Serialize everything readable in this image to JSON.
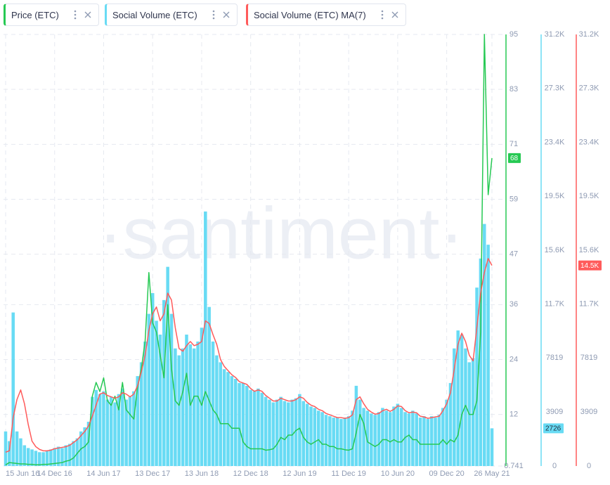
{
  "chart_data": {
    "type": "combo",
    "watermark": "·santiment·",
    "grid": true,
    "categories": [
      "15 Jun 16",
      null,
      null,
      null,
      null,
      null,
      null,
      null,
      null,
      null,
      null,
      null,
      null,
      "14 Dec 16",
      null,
      null,
      null,
      null,
      null,
      null,
      null,
      null,
      null,
      null,
      null,
      null,
      "14 Jun 17",
      null,
      null,
      null,
      null,
      null,
      null,
      null,
      null,
      null,
      null,
      null,
      null,
      "13 Dec 17",
      null,
      null,
      null,
      null,
      null,
      null,
      null,
      null,
      null,
      null,
      null,
      null,
      "13 Jun 18",
      null,
      null,
      null,
      null,
      null,
      null,
      null,
      null,
      null,
      null,
      null,
      null,
      "12 Dec 18",
      null,
      null,
      null,
      null,
      null,
      null,
      null,
      null,
      null,
      null,
      null,
      null,
      "12 Jun 19",
      null,
      null,
      null,
      null,
      null,
      null,
      null,
      null,
      null,
      null,
      null,
      null,
      "11 Dec 19",
      null,
      null,
      null,
      null,
      null,
      null,
      null,
      null,
      null,
      null,
      null,
      null,
      "10 Jun 20",
      null,
      null,
      null,
      null,
      null,
      null,
      null,
      null,
      null,
      null,
      null,
      null,
      "09 Dec 20",
      null,
      null,
      null,
      null,
      null,
      null,
      null,
      null,
      null,
      null,
      null,
      "26 May 21"
    ],
    "series": [
      {
        "name": "Price (ETC)",
        "type": "line",
        "axis": "y",
        "color": "#26c953",
        "current": 68,
        "values": [
          1.0,
          1.5,
          1.4,
          1.3,
          1.2,
          1.2,
          1.1,
          1.1,
          1.0,
          1.0,
          1.1,
          1.1,
          1.2,
          1.3,
          1.4,
          1.5,
          1.8,
          2.0,
          2.5,
          3.5,
          4.5,
          5.0,
          6.0,
          16,
          19,
          17,
          20,
          15,
          14,
          16,
          13,
          19,
          13,
          12,
          11,
          18,
          22,
          28,
          43,
          32,
          30,
          25,
          20,
          36,
          22,
          15,
          14,
          17,
          21,
          14,
          16,
          16,
          14,
          17,
          15,
          13,
          12,
          10,
          10,
          10,
          9,
          9,
          9,
          6,
          5,
          4.5,
          4.5,
          4.5,
          4.5,
          4.2,
          4.3,
          4.5,
          5.5,
          7,
          6.5,
          7.5,
          7.5,
          8.5,
          9,
          7,
          6,
          5.5,
          6,
          6.5,
          5.5,
          5.5,
          5,
          5,
          4.5,
          4.5,
          4.3,
          4.2,
          4.5,
          8,
          12,
          10,
          6,
          5.5,
          5,
          5.5,
          6.5,
          6.5,
          6,
          6.5,
          6,
          6,
          7,
          7.5,
          6.5,
          6.5,
          5.5,
          5.5,
          5.5,
          5.5,
          5.5,
          5.5,
          6.5,
          5.5,
          6.5,
          6,
          7.5,
          12,
          14,
          12,
          12,
          15,
          30,
          95,
          60,
          68
        ]
      },
      {
        "name": "Social Volume (ETC)",
        "type": "bar",
        "axis": "y2",
        "color": "#68dbf4",
        "current": 2726,
        "values": [
          2500,
          1800,
          11100,
          2500,
          2000,
          1500,
          1300,
          1200,
          1100,
          1000,
          1000,
          1100,
          1200,
          1300,
          1400,
          1300,
          1500,
          1600,
          1800,
          2000,
          2500,
          2800,
          3200,
          5000,
          5500,
          5200,
          5400,
          4800,
          5000,
          4600,
          5200,
          5600,
          4800,
          5000,
          5400,
          6500,
          7500,
          9000,
          11000,
          12500,
          10500,
          9500,
          12000,
          14400,
          11000,
          8500,
          8000,
          8500,
          9500,
          8800,
          8500,
          9000,
          10000,
          18400,
          11500,
          9000,
          8000,
          7500,
          7000,
          6800,
          6500,
          6300,
          6000,
          6000,
          5800,
          5500,
          5400,
          5600,
          5300,
          5000,
          4800,
          4600,
          4800,
          5000,
          4700,
          4600,
          4800,
          4900,
          5200,
          4700,
          4500,
          4300,
          4200,
          4000,
          3900,
          3700,
          3600,
          3500,
          3500,
          3400,
          3500,
          3600,
          4000,
          5800,
          4800,
          4200,
          4000,
          3800,
          3700,
          3900,
          4200,
          4000,
          3900,
          4300,
          4500,
          4200,
          3900,
          3800,
          4000,
          3800,
          3500,
          3600,
          3400,
          3600,
          3500,
          3700,
          4200,
          4800,
          6000,
          8500,
          9800,
          9500,
          8500,
          7500,
          7800,
          12900,
          15000,
          17500,
          16000,
          2726
        ]
      },
      {
        "name": "Social Volume (ETC) MA(7)",
        "type": "line",
        "axis": "y3",
        "color": "#ff5b5b",
        "current": {
          "value": 14500,
          "label": "14.5K"
        },
        "values": [
          1000,
          1100,
          3500,
          4800,
          5500,
          4500,
          3000,
          1800,
          1400,
          1200,
          1100,
          1100,
          1150,
          1250,
          1300,
          1350,
          1400,
          1500,
          1700,
          1900,
          2200,
          2500,
          2900,
          3600,
          4400,
          5200,
          5300,
          5100,
          5000,
          4900,
          5000,
          5300,
          5200,
          5000,
          5200,
          5800,
          6800,
          8000,
          9800,
          11000,
          11500,
          10500,
          11000,
          12500,
          12000,
          10000,
          8500,
          8300,
          8700,
          9000,
          8700,
          8800,
          9000,
          10500,
          10300,
          9500,
          8800,
          7700,
          7200,
          6900,
          6600,
          6400,
          6100,
          6000,
          5900,
          5600,
          5400,
          5500,
          5400,
          5100,
          4900,
          4700,
          4700,
          4900,
          4800,
          4700,
          4700,
          4800,
          5000,
          4900,
          4600,
          4400,
          4300,
          4100,
          4000,
          3800,
          3700,
          3600,
          3500,
          3500,
          3450,
          3500,
          3700,
          4800,
          5000,
          4500,
          4100,
          3900,
          3750,
          3800,
          4000,
          4100,
          3950,
          4100,
          4350,
          4300,
          4000,
          3850,
          3900,
          3850,
          3600,
          3550,
          3450,
          3500,
          3550,
          3600,
          4000,
          4500,
          5300,
          7000,
          8800,
          9600,
          9000,
          8000,
          7600,
          10000,
          12500,
          14000,
          15000,
          14500
        ]
      }
    ],
    "ylim": [
      0.741,
      95
    ],
    "yticks": [
      0.741,
      12,
      24,
      36,
      47,
      59,
      71,
      83,
      95
    ],
    "y2lim": [
      0,
      31200
    ],
    "y2ticks": [
      0,
      3909,
      7819,
      {
        "value": 11700,
        "label": "11.7K"
      },
      {
        "value": 15600,
        "label": "15.6K"
      },
      {
        "value": 19500,
        "label": "19.5K"
      },
      {
        "value": 23400,
        "label": "23.4K"
      },
      {
        "value": 27300,
        "label": "27.3K"
      },
      {
        "value": 31200,
        "label": "31.2K"
      }
    ],
    "y3lim": [
      0,
      31200
    ],
    "y3ticks": [
      0,
      3909,
      7819,
      {
        "value": 11700,
        "label": "11.7K"
      },
      {
        "value": 15600,
        "label": "15.6K"
      },
      {
        "value": 19500,
        "label": "19.5K"
      },
      {
        "value": 23400,
        "label": "23.4K"
      },
      {
        "value": 27300,
        "label": "27.3K"
      },
      {
        "value": 31200,
        "label": "31.2K"
      }
    ]
  }
}
